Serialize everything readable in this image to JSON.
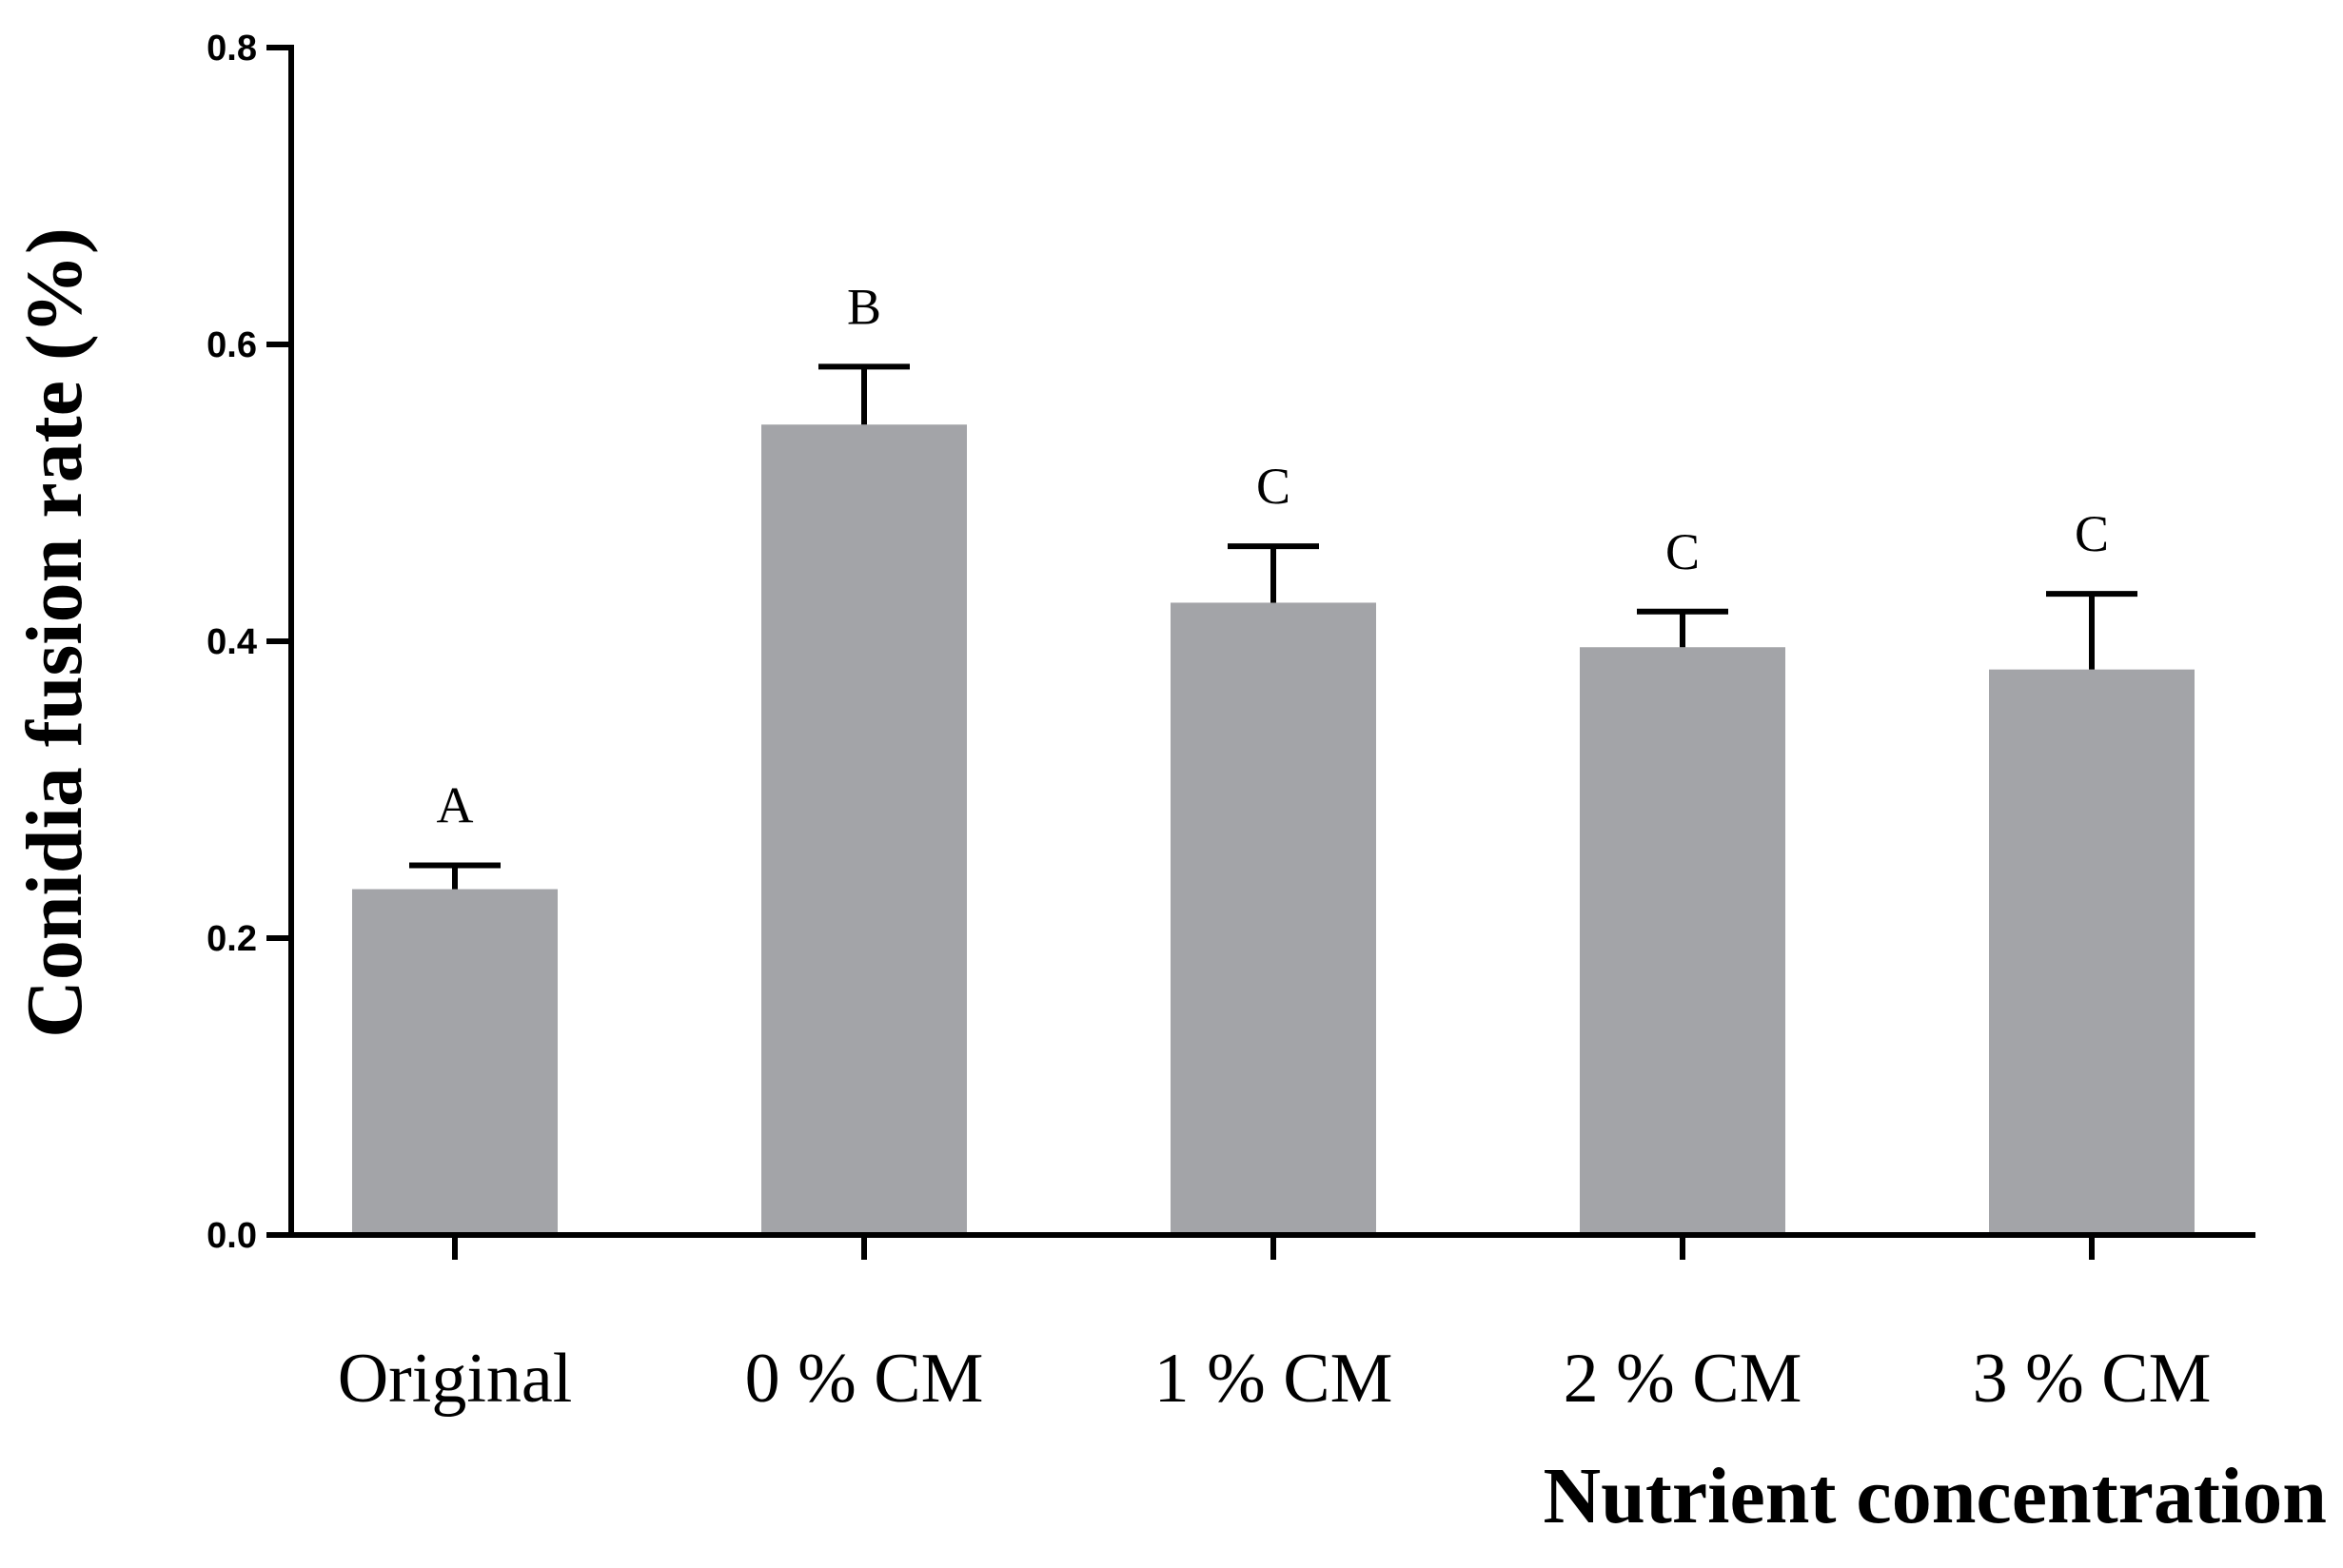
{
  "chart_data": {
    "type": "bar",
    "title": "",
    "xlabel": "Nutrient concentration",
    "ylabel": "Conidia fusion rate (%)",
    "categories": [
      "Original",
      "0 % CM",
      "1 % CM",
      "2 % CM",
      "3 % CM"
    ],
    "values": [
      0.233,
      0.546,
      0.426,
      0.396,
      0.381
    ],
    "error": [
      0.016,
      0.039,
      0.038,
      0.024,
      0.051
    ],
    "significance": [
      "A",
      "B",
      "C",
      "C",
      "C"
    ],
    "ylim": [
      0,
      0.8
    ],
    "yticks": [
      0.0,
      0.2,
      0.4,
      0.6,
      0.8
    ],
    "ytick_labels": [
      "0.0",
      "0.2",
      "0.4",
      "0.6",
      "0.8"
    ],
    "bar_color": "#a3a4a8",
    "grid": false,
    "legend": "none"
  }
}
